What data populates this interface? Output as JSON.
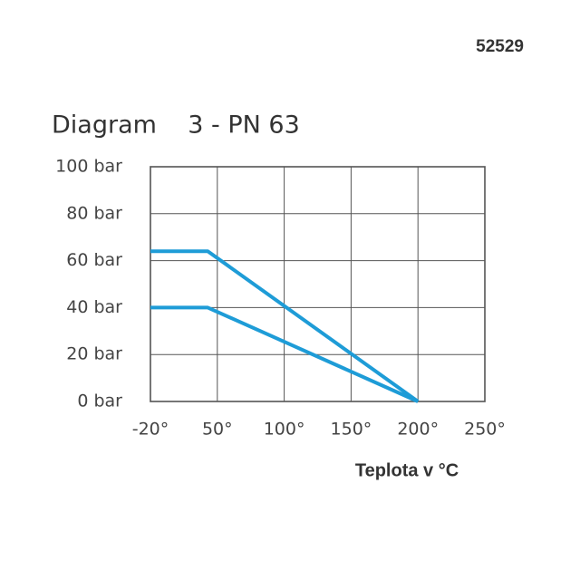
{
  "chart_data": {
    "type": "line",
    "title": "Diagram    3 - PN 63",
    "code": "52529",
    "x_label": "Teplota v °C",
    "x": [
      -20,
      40,
      200
    ],
    "series": [
      {
        "color": "#1e9cd7",
        "values": [
          64,
          64,
          0
        ]
      },
      {
        "color": "#1e9cd7",
        "values": [
          40,
          40,
          0
        ]
      }
    ],
    "xlim": [
      -20,
      250
    ],
    "xticks": [
      {
        "value": -20,
        "label": "-20°"
      },
      {
        "value": 50,
        "label": "50°"
      },
      {
        "value": 100,
        "label": "100°"
      },
      {
        "value": 150,
        "label": "150°"
      },
      {
        "value": 200,
        "label": "200°"
      },
      {
        "value": 250,
        "label": "250°"
      }
    ],
    "ylim": [
      0,
      100
    ],
    "yticks": [
      {
        "value": 0,
        "label": "0 bar"
      },
      {
        "value": 20,
        "label": "20 bar"
      },
      {
        "value": 40,
        "label": "40 bar"
      },
      {
        "value": 60,
        "label": "60 bar"
      },
      {
        "value": 80,
        "label": "80 bar"
      },
      {
        "value": 100,
        "label": "100 bar"
      }
    ],
    "grid": true
  }
}
